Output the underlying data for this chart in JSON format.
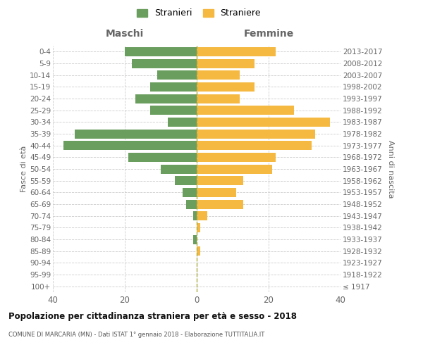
{
  "age_groups": [
    "100+",
    "95-99",
    "90-94",
    "85-89",
    "80-84",
    "75-79",
    "70-74",
    "65-69",
    "60-64",
    "55-59",
    "50-54",
    "45-49",
    "40-44",
    "35-39",
    "30-34",
    "25-29",
    "20-24",
    "15-19",
    "10-14",
    "5-9",
    "0-4"
  ],
  "birth_years": [
    "≤ 1917",
    "1918-1922",
    "1923-1927",
    "1928-1932",
    "1933-1937",
    "1938-1942",
    "1943-1947",
    "1948-1952",
    "1953-1957",
    "1958-1962",
    "1963-1967",
    "1968-1972",
    "1973-1977",
    "1978-1982",
    "1983-1987",
    "1988-1992",
    "1993-1997",
    "1998-2002",
    "2003-2007",
    "2008-2012",
    "2013-2017"
  ],
  "males": [
    0,
    0,
    0,
    0,
    1,
    0,
    1,
    3,
    4,
    6,
    10,
    19,
    37,
    34,
    8,
    13,
    17,
    13,
    11,
    18,
    20
  ],
  "females": [
    0,
    0,
    0,
    1,
    0,
    1,
    3,
    13,
    11,
    13,
    21,
    22,
    32,
    33,
    37,
    27,
    12,
    16,
    12,
    16,
    22
  ],
  "male_color": "#6a9e5e",
  "female_color": "#f5b942",
  "dashed_color": "#aaaa44",
  "grid_color": "#cccccc",
  "bg_color": "#ffffff",
  "text_color": "#666666",
  "title": "Popolazione per cittadinanza straniera per età e sesso - 2018",
  "subtitle": "COMUNE DI MARCARIA (MN) - Dati ISTAT 1° gennaio 2018 - Elaborazione TUTTITALIA.IT",
  "label_maschi": "Maschi",
  "label_femmine": "Femmine",
  "ylabel_left": "Fasce di età",
  "ylabel_right": "Anni di nascita",
  "legend_male": "Stranieri",
  "legend_female": "Straniere",
  "xlim": 40
}
